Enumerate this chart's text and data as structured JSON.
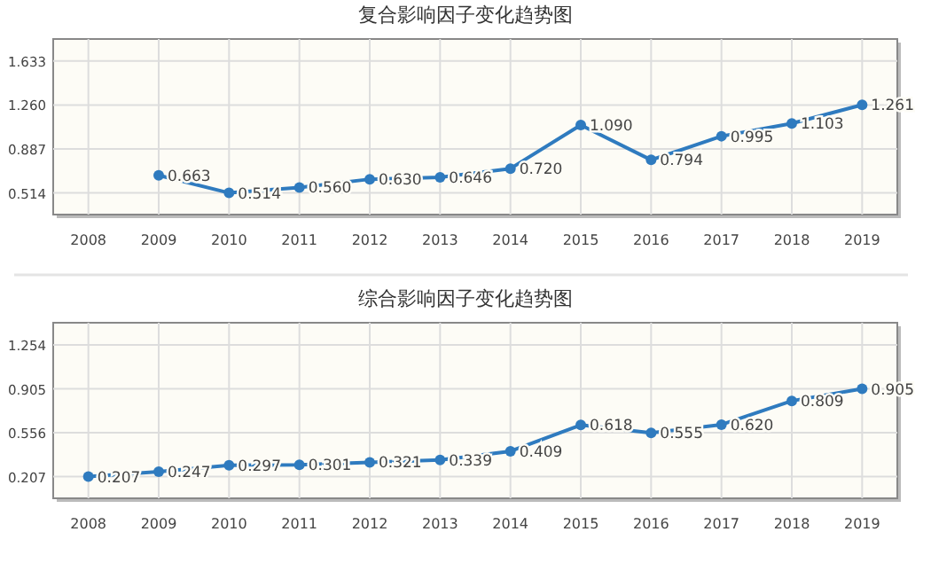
{
  "chart_data": [
    {
      "type": "line",
      "title": "复合影响因子变化趋势图",
      "categories": [
        "2008",
        "2009",
        "2010",
        "2011",
        "2012",
        "2013",
        "2014",
        "2015",
        "2016",
        "2017",
        "2018",
        "2019"
      ],
      "series": [
        {
          "color": "#2f7bbf",
          "values": [
            null,
            0.663,
            0.514,
            0.56,
            0.63,
            0.646,
            0.72,
            1.09,
            0.794,
            0.995,
            1.103,
            1.261
          ],
          "value_labels": [
            null,
            "0.663",
            "0.514",
            "0.560",
            "0.630",
            "0.646",
            "0.720",
            "1.090",
            "0.794",
            "0.995",
            "1.103",
            "1.261"
          ]
        }
      ],
      "ylim": [
        0.33,
        1.82
      ],
      "yticks": [
        {
          "value": 0.514,
          "label": "0.514"
        },
        {
          "value": 0.887,
          "label": "0.887"
        },
        {
          "value": 1.26,
          "label": "1.260"
        },
        {
          "value": 1.633,
          "label": "1.633"
        }
      ],
      "grid": true,
      "marker": "circle"
    },
    {
      "type": "line",
      "title": "综合影响因子变化趋势图",
      "categories": [
        "2008",
        "2009",
        "2010",
        "2011",
        "2012",
        "2013",
        "2014",
        "2015",
        "2016",
        "2017",
        "2018",
        "2019"
      ],
      "series": [
        {
          "color": "#2f7bbf",
          "values": [
            0.207,
            0.247,
            0.297,
            0.301,
            0.321,
            0.339,
            0.409,
            0.618,
            0.555,
            0.62,
            0.809,
            0.905
          ],
          "value_labels": [
            "0.207",
            "0.247",
            "0.297",
            "0.301",
            "0.321",
            "0.339",
            "0.409",
            "0.618",
            "0.555",
            "0.620",
            "0.809",
            "0.905"
          ]
        }
      ],
      "ylim": [
        0.035,
        1.43
      ],
      "yticks": [
        {
          "value": 0.207,
          "label": "0.207"
        },
        {
          "value": 0.556,
          "label": "0.556"
        },
        {
          "value": 0.905,
          "label": "0.905"
        },
        {
          "value": 1.254,
          "label": "1.254"
        }
      ],
      "grid": true,
      "marker": "circle"
    }
  ]
}
